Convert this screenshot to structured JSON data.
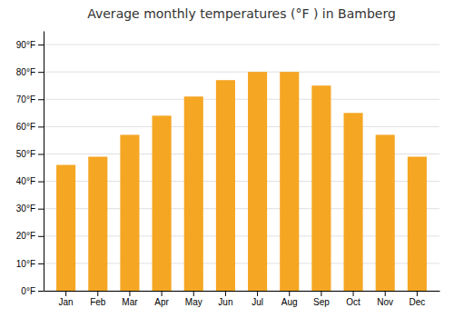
{
  "chart_data": {
    "type": "bar",
    "title": "Average monthly temperatures (°F ) in Bamberg",
    "categories": [
      "Jan",
      "Feb",
      "Mar",
      "Apr",
      "May",
      "Jun",
      "Jul",
      "Aug",
      "Sep",
      "Oct",
      "Nov",
      "Dec"
    ],
    "values": [
      46,
      49,
      57,
      64,
      71,
      77,
      80,
      80,
      75,
      65,
      57,
      49
    ],
    "color": "#F5A623",
    "ylim": [
      0,
      95
    ],
    "yticks": [
      {
        "value": 0,
        "label": "0°F"
      },
      {
        "value": 10,
        "label": "10°F"
      },
      {
        "value": 20,
        "label": "20°F"
      },
      {
        "value": 30,
        "label": "30°F"
      },
      {
        "value": 40,
        "label": "40°F"
      },
      {
        "value": 50,
        "label": "50°F"
      },
      {
        "value": 60,
        "label": "60°F"
      },
      {
        "value": 70,
        "label": "70°F"
      },
      {
        "value": 80,
        "label": "80°F"
      },
      {
        "value": 90,
        "label": "90°F"
      }
    ],
    "grid": true
  }
}
